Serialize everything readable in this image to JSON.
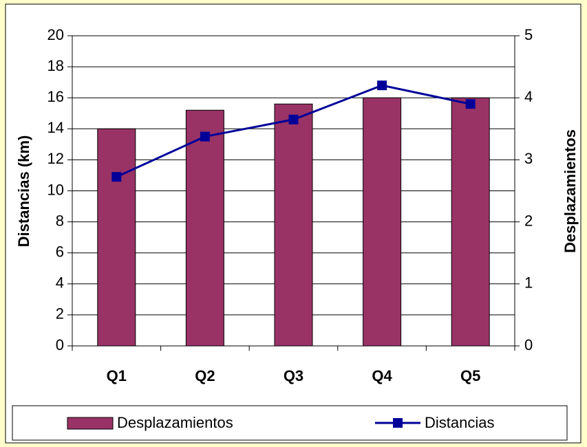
{
  "chart_data": {
    "type": "bar-line",
    "categories": [
      "Q1",
      "Q2",
      "Q3",
      "Q4",
      "Q5"
    ],
    "series": [
      {
        "name": "Desplazamientos",
        "type": "bar",
        "axis": "y2",
        "color": "#993366",
        "values": [
          3.5,
          3.8,
          3.9,
          4.0,
          4.0
        ]
      },
      {
        "name": "Distancias",
        "type": "line",
        "axis": "y",
        "color": "#000099",
        "values": [
          10.9,
          13.5,
          14.6,
          16.8,
          15.6
        ]
      }
    ],
    "ylabel": "Distancias (km)",
    "y2label": "Desplazamientos",
    "ylim": [
      0,
      20
    ],
    "yticks": [
      0,
      2,
      4,
      6,
      8,
      10,
      12,
      14,
      16,
      18,
      20
    ],
    "y2lim": [
      0,
      5
    ],
    "y2ticks": [
      0,
      1,
      2,
      3,
      4,
      5
    ],
    "grid": true,
    "legend": "bottom"
  }
}
